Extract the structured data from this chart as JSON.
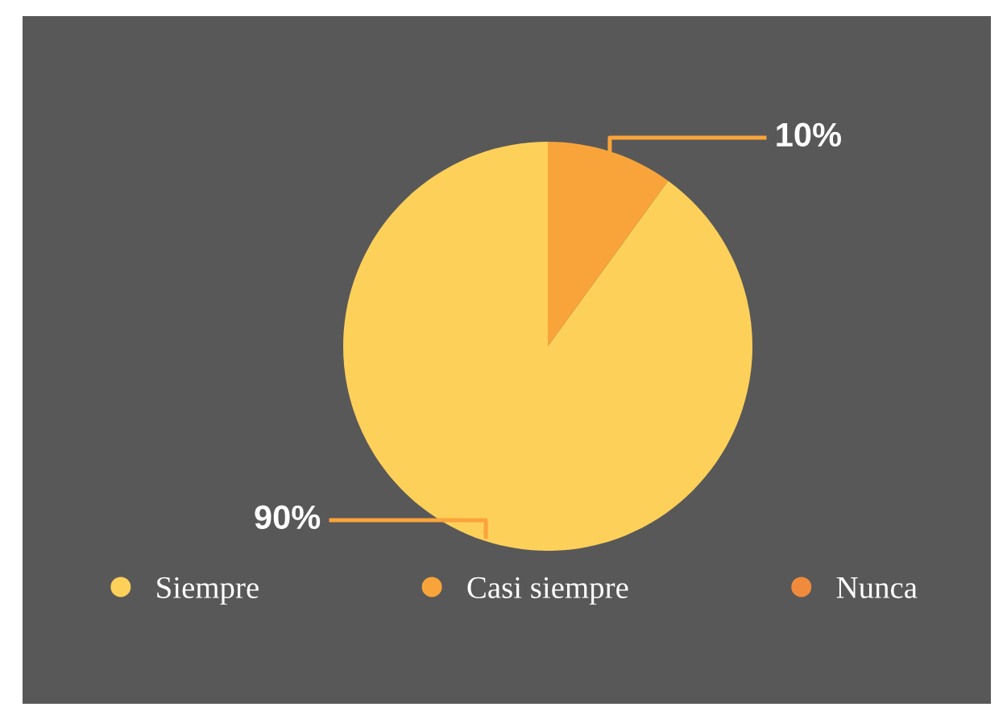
{
  "chart_data": {
    "type": "pie",
    "categories": [
      "Siempre",
      "Casi siempre",
      "Nunca"
    ],
    "values": [
      90,
      10,
      0
    ],
    "colors": [
      "#fdd05a",
      "#f9a43a",
      "#f08a3c"
    ],
    "value_labels": [
      "90%",
      "10%",
      null
    ],
    "legend": "bottom"
  }
}
